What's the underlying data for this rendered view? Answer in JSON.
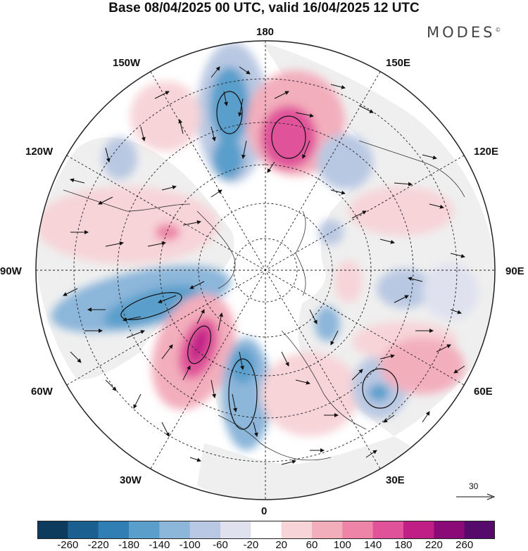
{
  "title": "Base 08/04/2025 00 UTC, valid 16/04/2025 12 UTC",
  "brand": "MODES",
  "brand_mark": "©",
  "longitude_labels": {
    "lon_180": "180",
    "lon_150e": "150E",
    "lon_120e": "120E",
    "lon_90e": "90E",
    "lon_60e": "60E",
    "lon_30e": "30E",
    "lon_0": "0",
    "lon_30w": "30W",
    "lon_60w": "60W",
    "lon_90w": "90W",
    "lon_120w": "120W",
    "lon_150w": "150W"
  },
  "reference_vector": {
    "value": "30"
  },
  "colorbar": {
    "ticks": [
      "-260",
      "-220",
      "-180",
      "-140",
      "-100",
      "-60",
      "-20",
      "20",
      "60",
      "100",
      "140",
      "180",
      "220",
      "260"
    ],
    "colors": [
      "#0d3b5e",
      "#1a5f8f",
      "#2f7fb5",
      "#5a9fcc",
      "#8cb6da",
      "#b9c8e2",
      "#dfe1ef",
      "#ffffff",
      "#f7d4d8",
      "#f3aebc",
      "#ee84a8",
      "#e0529a",
      "#c01f85",
      "#8a0b78",
      "#560a6b"
    ]
  },
  "anomaly_field": {
    "map_type": "polar stereographic (north pole), geopotential height anomaly with wind vectors",
    "colors": {
      "land_gray": "#efefef",
      "coastline": "#333333",
      "vector": "#111111"
    }
  }
}
